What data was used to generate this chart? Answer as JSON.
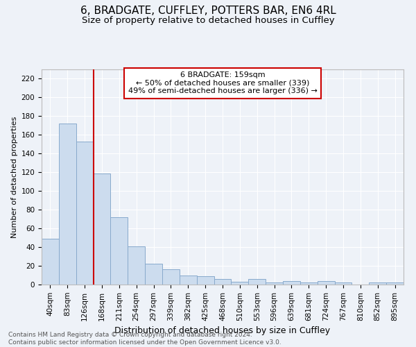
{
  "title": "6, BRADGATE, CUFFLEY, POTTERS BAR, EN6 4RL",
  "subtitle": "Size of property relative to detached houses in Cuffley",
  "xlabel": "Distribution of detached houses by size in Cuffley",
  "ylabel": "Number of detached properties",
  "bar_color": "#ccdcee",
  "bar_edge_color": "#88aacc",
  "background_color": "#eef2f8",
  "grid_color": "#ffffff",
  "categories": [
    "40sqm",
    "83sqm",
    "126sqm",
    "168sqm",
    "211sqm",
    "254sqm",
    "297sqm",
    "339sqm",
    "382sqm",
    "425sqm",
    "468sqm",
    "510sqm",
    "553sqm",
    "596sqm",
    "639sqm",
    "681sqm",
    "724sqm",
    "767sqm",
    "810sqm",
    "852sqm",
    "895sqm"
  ],
  "values": [
    49,
    172,
    153,
    119,
    72,
    41,
    22,
    16,
    10,
    9,
    6,
    3,
    6,
    2,
    4,
    2,
    4,
    2,
    0,
    2,
    2
  ],
  "vline_x": 2.5,
  "vline_color": "#cc0000",
  "annotation_text": "6 BRADGATE: 159sqm\n← 50% of detached houses are smaller (339)\n49% of semi-detached houses are larger (336) →",
  "annotation_box_color": "#ffffff",
  "annotation_box_edge": "#cc0000",
  "ylim": [
    0,
    230
  ],
  "yticks": [
    0,
    20,
    40,
    60,
    80,
    100,
    120,
    140,
    160,
    180,
    200,
    220
  ],
  "footnote": "Contains HM Land Registry data © Crown copyright and database right 2024.\nContains public sector information licensed under the Open Government Licence v3.0.",
  "title_fontsize": 11,
  "subtitle_fontsize": 9.5,
  "xlabel_fontsize": 9,
  "ylabel_fontsize": 8,
  "tick_fontsize": 7.5,
  "footnote_fontsize": 6.5
}
